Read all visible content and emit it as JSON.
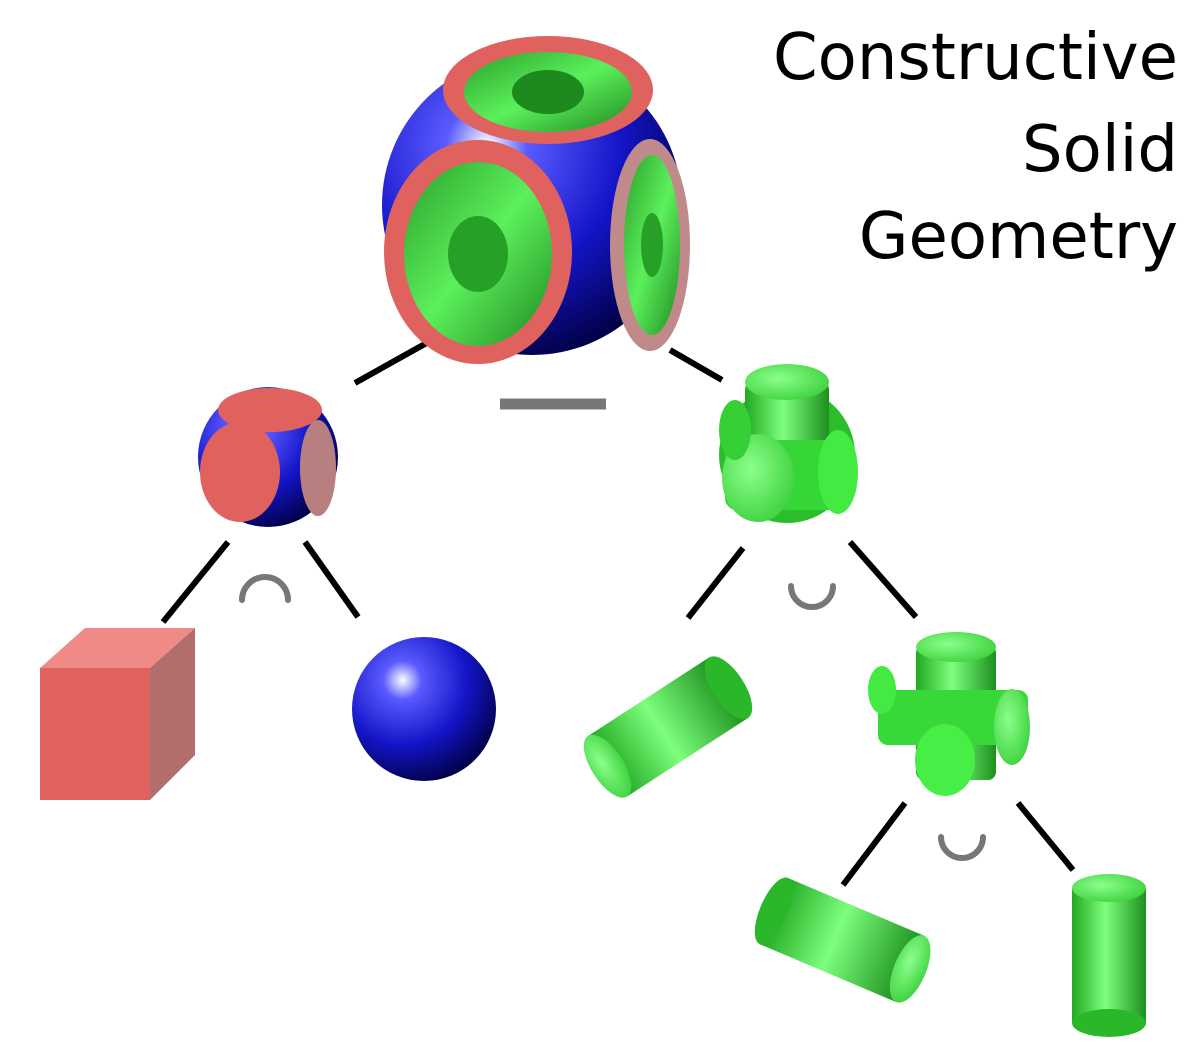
{
  "title": {
    "lines": [
      "Constructive",
      "Solid",
      "Geometry"
    ]
  },
  "colors": {
    "blue": "#1414c8",
    "red": "#e0625f",
    "green": "#3ee63e",
    "edge": "#000000",
    "operator": "#777777"
  },
  "tree": {
    "root": {
      "shape": "difference-result",
      "operator": "difference"
    },
    "left": {
      "shape": "intersection-result",
      "operator": "intersection",
      "children": [
        "cube",
        "sphere"
      ]
    },
    "right": {
      "shape": "union-result",
      "operator": "union",
      "children": [
        "cylinder",
        "union-sub-result"
      ]
    },
    "sub": {
      "shape": "union-sub-result",
      "operator": "union",
      "children": [
        "cylinder",
        "cylinder"
      ]
    }
  }
}
